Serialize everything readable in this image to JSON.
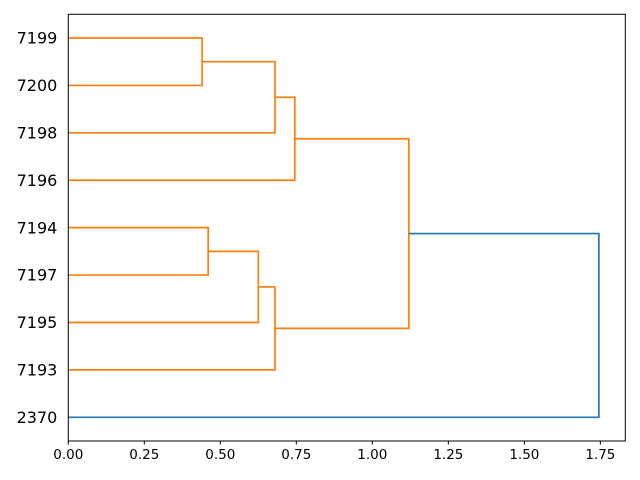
{
  "chart_data": {
    "type": "dendrogram",
    "title": "",
    "xlabel": "",
    "ylabel": "",
    "orientation": "right",
    "legend": "none",
    "grid": false,
    "leaves": [
      "7199",
      "7200",
      "7198",
      "7196",
      "7194",
      "7197",
      "7195",
      "7193",
      "2370"
    ],
    "links": [
      {
        "id": "L1",
        "a": "7199",
        "b": "7200",
        "height": 0.44,
        "color": "orange"
      },
      {
        "id": "L2",
        "a": "L1",
        "b": "7198",
        "height": 0.68,
        "color": "orange"
      },
      {
        "id": "L3",
        "a": "L2",
        "b": "7196",
        "height": 0.745,
        "color": "orange"
      },
      {
        "id": "L4",
        "a": "7194",
        "b": "7197",
        "height": 0.46,
        "color": "orange"
      },
      {
        "id": "L5",
        "a": "L4",
        "b": "7195",
        "height": 0.625,
        "color": "orange"
      },
      {
        "id": "L6",
        "a": "L5",
        "b": "7193",
        "height": 0.68,
        "color": "orange"
      },
      {
        "id": "L7",
        "a": "L3",
        "b": "L6",
        "height": 1.12,
        "color": "orange"
      },
      {
        "id": "L8",
        "a": "L7",
        "b": "2370",
        "height": 1.745,
        "color": "blue"
      }
    ],
    "x_ticks": [
      {
        "value": 0.0,
        "label": "0.00"
      },
      {
        "value": 0.25,
        "label": "0.25"
      },
      {
        "value": 0.5,
        "label": "0.50"
      },
      {
        "value": 0.75,
        "label": "0.75"
      },
      {
        "value": 1.0,
        "label": "1.00"
      },
      {
        "value": 1.25,
        "label": "1.25"
      },
      {
        "value": 1.5,
        "label": "1.50"
      },
      {
        "value": 1.75,
        "label": "1.75"
      }
    ],
    "xlim": [
      0,
      1.832
    ],
    "colors": {
      "orange": "#ff7f0e",
      "blue": "#1f77b4",
      "axis": "#000000",
      "background": "#ffffff"
    }
  }
}
